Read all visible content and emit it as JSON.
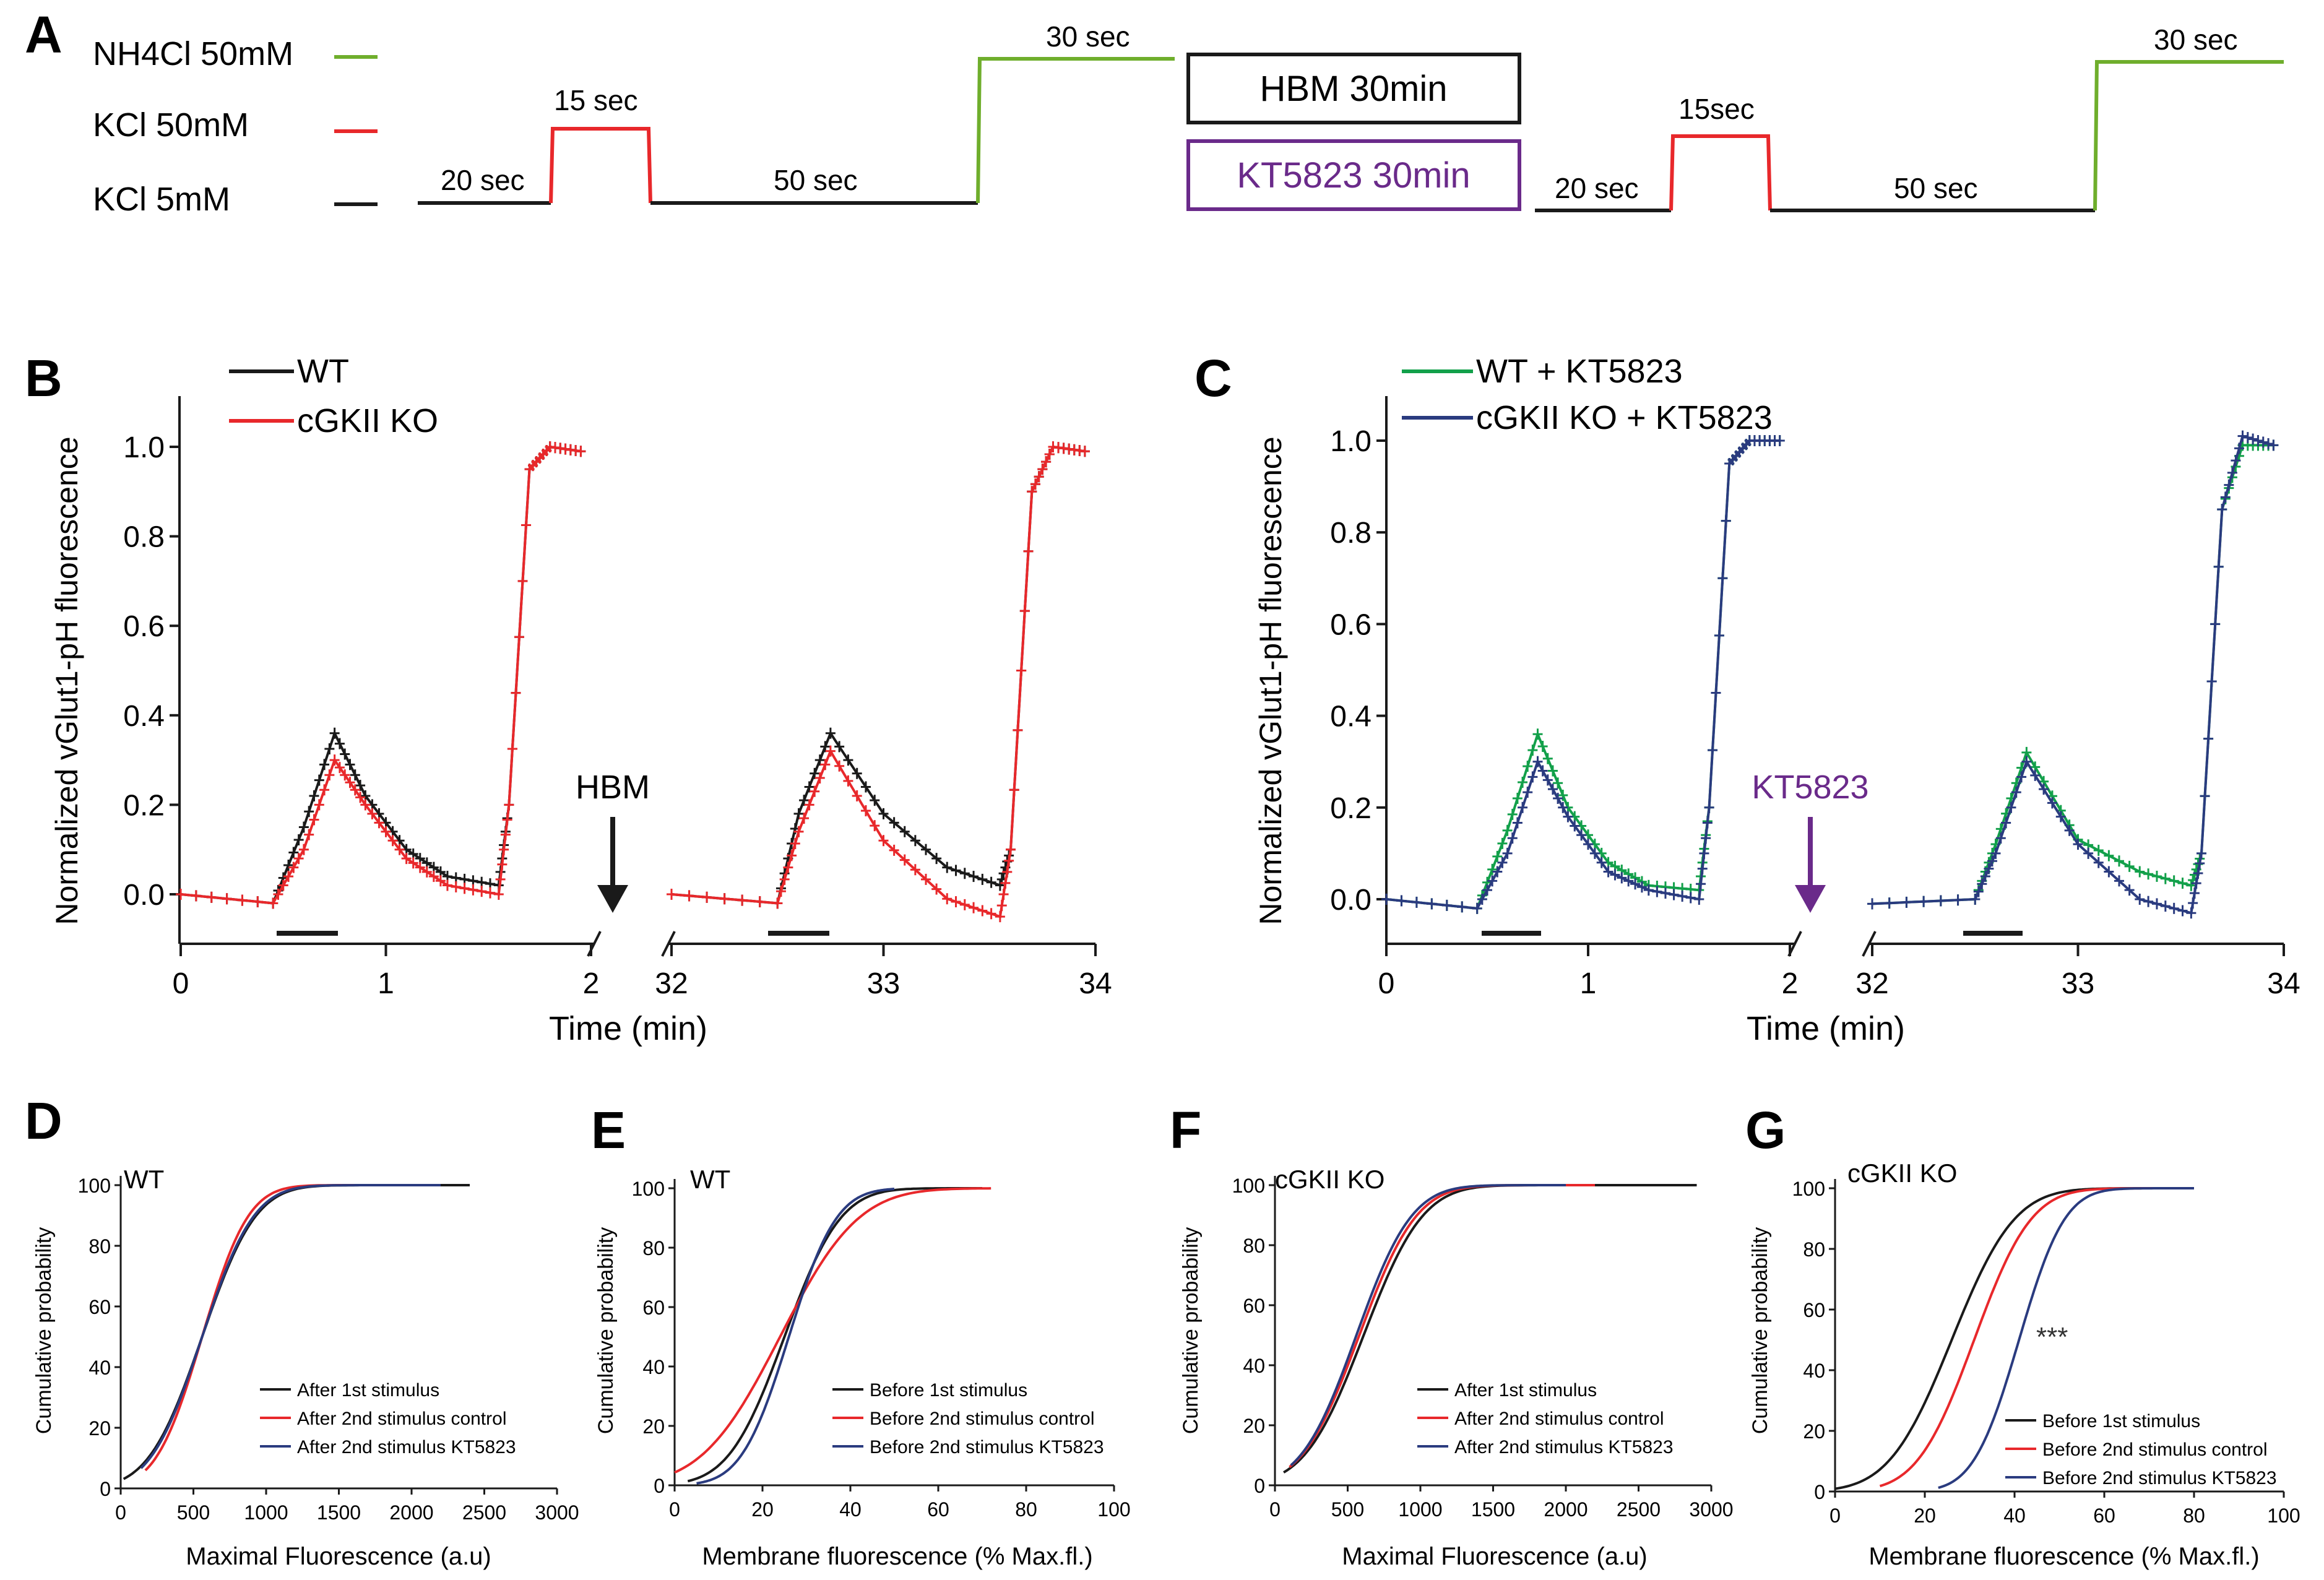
{
  "colors": {
    "black": "#1a1a1a",
    "red": "#e8282b",
    "green": "#12a04a",
    "blue": "#2a3b7f",
    "purple": "#6a2a8a",
    "lime": "#6fae2c"
  },
  "panelA": {
    "letter": "A",
    "legend": [
      {
        "label": "NH4Cl 50mM",
        "color": "#6fae2c"
      },
      {
        "label": "KCl 50mM",
        "color": "#e8282b"
      },
      {
        "label": "KCl 5mM",
        "color": "#1a1a1a"
      }
    ],
    "protocol1": {
      "seg1": "20 sec",
      "seg2": "15 sec",
      "seg3": "50 sec",
      "seg4": "30 sec"
    },
    "protocol2": {
      "seg1": "20 sec",
      "seg2": "15sec",
      "seg3": "50 sec",
      "seg4": "30 sec"
    },
    "box1": "HBM 30min",
    "box2": "KT5823 30min"
  },
  "panelB": {
    "letter": "B",
    "ylabel": "Normalized vGlut1-pH fluorescence",
    "xlabel": "Time (min)",
    "yticks": [
      "0.0",
      "0.2",
      "0.4",
      "0.6",
      "0.8",
      "1.0"
    ],
    "xticks_left": [
      "0",
      "1",
      "2"
    ],
    "xticks_right": [
      "32",
      "33",
      "34"
    ],
    "arrow_label": "HBM",
    "legend": [
      "WT",
      "cGKII KO"
    ]
  },
  "panelC": {
    "letter": "C",
    "ylabel": "Normalized vGlut1-pH fluorescence",
    "xlabel": "Time (min)",
    "yticks": [
      "0.0",
      "0.2",
      "0.4",
      "0.6",
      "0.8",
      "1.0"
    ],
    "xticks_left": [
      "0",
      "1",
      "2"
    ],
    "xticks_right": [
      "32",
      "33",
      "34"
    ],
    "arrow_label": "KT5823",
    "legend": [
      "WT + KT5823",
      "cGKII KO + KT5823"
    ]
  },
  "panelD": {
    "letter": "D",
    "tag": "WT",
    "ylabel": "Cumulative probability",
    "xlabel": "Maximal Fluorescence (a.u)",
    "xticks": [
      "0",
      "500",
      "1000",
      "1500",
      "2000",
      "2500",
      "3000"
    ],
    "yticks": [
      "0",
      "20",
      "40",
      "60",
      "80",
      "100"
    ],
    "legend": [
      "After 1st stimulus",
      "After 2nd stimulus control",
      "After 2nd stimulus KT5823"
    ]
  },
  "panelE": {
    "letter": "E",
    "tag": "WT",
    "ylabel": "Cumulative probability",
    "xlabel": "Membrane fluorescence (% Max.fl.)",
    "xticks": [
      "0",
      "20",
      "40",
      "60",
      "80",
      "100"
    ],
    "yticks": [
      "0",
      "20",
      "40",
      "60",
      "80",
      "100"
    ],
    "legend": [
      "Before 1st stimulus",
      "Before 2nd stimulus control",
      "Before 2nd stimulus KT5823"
    ]
  },
  "panelF": {
    "letter": "F",
    "tag": "cGKII KO",
    "ylabel": "Cumulative probability",
    "xlabel": "Maximal Fluorescence (a.u)",
    "xticks": [
      "0",
      "500",
      "1000",
      "1500",
      "2000",
      "2500",
      "3000"
    ],
    "yticks": [
      "0",
      "20",
      "40",
      "60",
      "80",
      "100"
    ],
    "legend": [
      "After 1st stimulus",
      "After 2nd stimulus control",
      "After 2nd stimulus KT5823"
    ]
  },
  "panelG": {
    "letter": "G",
    "tag": "cGKII KO",
    "ylabel": "Cumulative probability",
    "xlabel": "Membrane fluorescence (% Max.fl.)",
    "xticks": [
      "0",
      "20",
      "40",
      "60",
      "80",
      "100"
    ],
    "yticks": [
      "0",
      "20",
      "40",
      "60",
      "80",
      "100"
    ],
    "legend": [
      "Before 1st stimulus",
      "Before 2nd stimulus control",
      "Before 2nd stimulus KT5823"
    ],
    "annotation": "***"
  },
  "chart_data": [
    {
      "type": "line",
      "panel": "B",
      "xlabel": "Time (min)",
      "ylabel": "Normalized vGlut1-pH fluorescence",
      "ylim": [
        -0.1,
        1.1
      ],
      "series": [
        {
          "name": "WT",
          "segment1": {
            "x": [
              0,
              0.45,
              0.6,
              0.75,
              0.9,
              1.1,
              1.3,
              1.55,
              1.6,
              1.7,
              1.8,
              1.95
            ],
            "y": [
              0,
              -0.02,
              0.15,
              0.36,
              0.22,
              0.1,
              0.04,
              0.02,
              0.2,
              0.95,
              1.0,
              0.99
            ]
          },
          "segment2": {
            "x": [
              32,
              32.5,
              32.6,
              32.75,
              33.0,
              33.3,
              33.55,
              33.6,
              33.7,
              33.8,
              33.95
            ],
            "y": [
              0,
              -0.02,
              0.18,
              0.36,
              0.18,
              0.06,
              0.02,
              0.1,
              0.9,
              1.0,
              0.99
            ]
          }
        },
        {
          "name": "cGKII KO",
          "segment1": {
            "x": [
              0,
              0.45,
              0.6,
              0.75,
              0.9,
              1.1,
              1.3,
              1.55,
              1.6,
              1.7,
              1.8,
              1.95
            ],
            "y": [
              0,
              -0.02,
              0.1,
              0.3,
              0.2,
              0.08,
              0.02,
              0.0,
              0.2,
              0.95,
              1.0,
              0.99
            ]
          },
          "segment2": {
            "x": [
              32,
              32.5,
              32.6,
              32.75,
              33.0,
              33.3,
              33.55,
              33.6,
              33.7,
              33.8,
              33.95
            ],
            "y": [
              0,
              -0.02,
              0.14,
              0.32,
              0.12,
              -0.01,
              -0.05,
              0.1,
              0.9,
              1.0,
              0.99
            ]
          }
        }
      ]
    },
    {
      "type": "line",
      "panel": "C",
      "xlabel": "Time (min)",
      "ylabel": "Normalized vGlut1-pH fluorescence",
      "ylim": [
        -0.1,
        1.1
      ],
      "series": [
        {
          "name": "WT + KT5823",
          "segment1": {
            "x": [
              0,
              0.45,
              0.6,
              0.75,
              0.9,
              1.1,
              1.3,
              1.55,
              1.6,
              1.7,
              1.8,
              1.95
            ],
            "y": [
              0,
              -0.02,
              0.15,
              0.36,
              0.2,
              0.08,
              0.03,
              0.02,
              0.2,
              0.95,
              1.0,
              1.0
            ]
          },
          "segment2": {
            "x": [
              32,
              32.5,
              32.6,
              32.75,
              33.0,
              33.3,
              33.55,
              33.6,
              33.7,
              33.8,
              33.95
            ],
            "y": [
              -0.01,
              0.0,
              0.12,
              0.32,
              0.13,
              0.06,
              0.03,
              0.1,
              0.85,
              0.99,
              0.99
            ]
          }
        },
        {
          "name": "cGKII KO + KT5823",
          "segment1": {
            "x": [
              0,
              0.45,
              0.6,
              0.75,
              0.9,
              1.1,
              1.3,
              1.55,
              1.6,
              1.7,
              1.8,
              1.95
            ],
            "y": [
              0,
              -0.02,
              0.1,
              0.3,
              0.18,
              0.06,
              0.02,
              0.0,
              0.2,
              0.95,
              1.0,
              1.0
            ]
          },
          "segment2": {
            "x": [
              32,
              32.5,
              32.6,
              32.75,
              33.0,
              33.3,
              33.55,
              33.6,
              33.7,
              33.8,
              33.95
            ],
            "y": [
              -0.01,
              0.0,
              0.1,
              0.3,
              0.12,
              0.0,
              -0.03,
              0.1,
              0.85,
              1.01,
              0.99
            ]
          }
        }
      ]
    },
    {
      "type": "line",
      "panel": "D",
      "xlabel": "Maximal Fluorescence (a.u)",
      "ylabel": "Cumulative probability",
      "xlim": [
        0,
        3000
      ],
      "ylim": [
        0,
        100
      ],
      "series": [
        {
          "name": "After 1st stimulus",
          "mu": 560,
          "sigma": 290,
          "range": [
            20,
            2400
          ]
        },
        {
          "name": "After 2nd stimulus control",
          "mu": 560,
          "sigma": 250,
          "range": [
            170,
            2100
          ]
        },
        {
          "name": "After 2nd stimulus KT5823",
          "mu": 560,
          "sigma": 280,
          "range": [
            140,
            2200
          ]
        }
      ]
    },
    {
      "type": "line",
      "panel": "E",
      "xlabel": "Membrane fluorescence (% Max.fl.)",
      "ylabel": "Cumulative probability",
      "xlim": [
        0,
        100
      ],
      "ylim": [
        0,
        100
      ],
      "series": [
        {
          "name": "Before 1st stimulus",
          "mu": 25,
          "sigma": 10,
          "range": [
            3,
            70
          ]
        },
        {
          "name": "Before 2nd stimulus control",
          "mu": 24,
          "sigma": 14,
          "range": [
            0,
            72
          ]
        },
        {
          "name": "Before 2nd stimulus KT5823",
          "mu": 26,
          "sigma": 8.5,
          "range": [
            5,
            50
          ]
        }
      ]
    },
    {
      "type": "line",
      "panel": "F",
      "xlabel": "Maximal Fluorescence (a.u)",
      "ylabel": "Cumulative probability",
      "xlim": [
        0,
        3000
      ],
      "ylim": [
        0,
        100
      ],
      "series": [
        {
          "name": "After 1st stimulus",
          "mu": 610,
          "sigma": 320,
          "range": [
            60,
            2900
          ]
        },
        {
          "name": "After 2nd stimulus control",
          "mu": 580,
          "sigma": 310,
          "range": [
            100,
            2200
          ]
        },
        {
          "name": "After 2nd stimulus KT5823",
          "mu": 560,
          "sigma": 300,
          "range": [
            110,
            2000
          ]
        }
      ]
    },
    {
      "type": "line",
      "panel": "G",
      "xlabel": "Membrane fluorescence (% Max.fl.)",
      "ylabel": "Cumulative probability",
      "xlim": [
        0,
        100
      ],
      "ylim": [
        0,
        100
      ],
      "series": [
        {
          "name": "Before 1st stimulus",
          "mu": 26,
          "sigma": 11,
          "range": [
            0,
            75
          ]
        },
        {
          "name": "Before 2nd stimulus control",
          "mu": 31,
          "sigma": 10,
          "range": [
            10,
            75
          ]
        },
        {
          "name": "Before 2nd stimulus KT5823",
          "mu": 41,
          "sigma": 8,
          "range": [
            23,
            80
          ]
        }
      ]
    }
  ]
}
